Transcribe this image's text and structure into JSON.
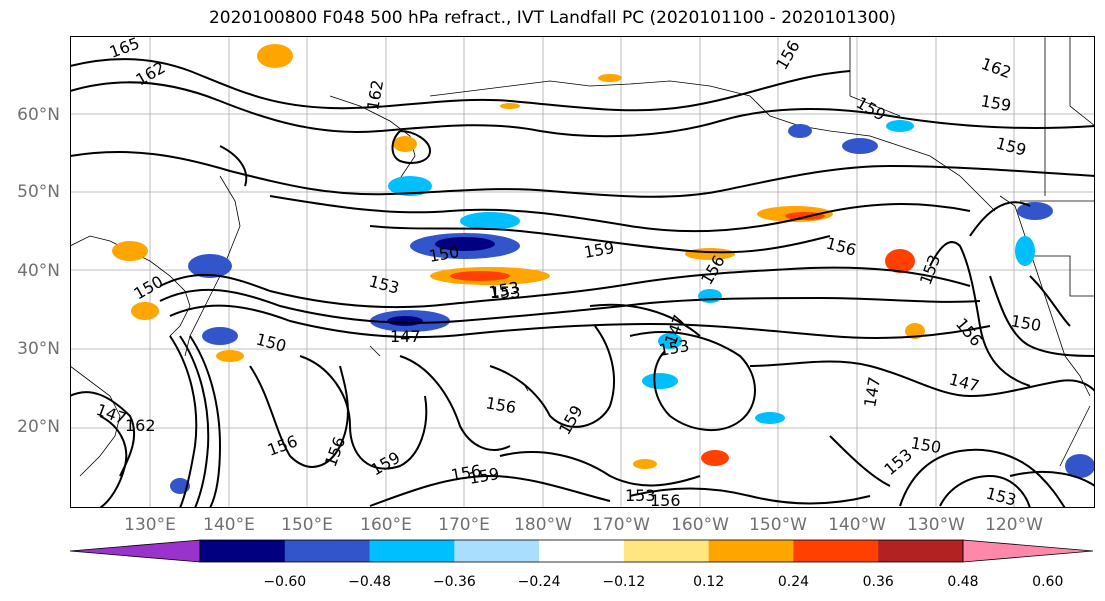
{
  "title": "2020100800 F048 500 hPa refract., IVT Landfall PC (2020101100 - 2020101300)",
  "lat_labels": [
    "60°N",
    "50°N",
    "40°N",
    "30°N",
    "20°N"
  ],
  "lon_labels": [
    "130°E",
    "140°E",
    "150°E",
    "160°E",
    "170°E",
    "180°W",
    "170°W",
    "160°W",
    "150°W",
    "140°W",
    "130°W",
    "120°W"
  ],
  "colorbar": {
    "ticks": [
      "−0.60",
      "−0.48",
      "−0.36",
      "−0.24",
      "−0.12",
      "0.12",
      "0.24",
      "0.36",
      "0.48",
      "0.60"
    ],
    "colors": [
      "#9933cc",
      "#000080",
      "#3355cc",
      "#00bfff",
      "#aadeff",
      "#ffffff",
      "#ffe680",
      "#ffa500",
      "#ff4000",
      "#b22222",
      "#ff88aa"
    ],
    "extend": "both"
  },
  "contour_labels": [
    "165",
    "162",
    "162",
    "156",
    "162",
    "159",
    "159",
    "159",
    "156",
    "150",
    "153",
    "153",
    "159",
    "156",
    "153",
    "147",
    "150",
    "150",
    "147",
    "147",
    "162",
    "156",
    "156",
    "156",
    "159",
    "156",
    "153",
    "147",
    "153",
    "159",
    "150",
    "156",
    "159",
    "147",
    "150",
    "153",
    "153",
    "156",
    "153"
  ]
}
